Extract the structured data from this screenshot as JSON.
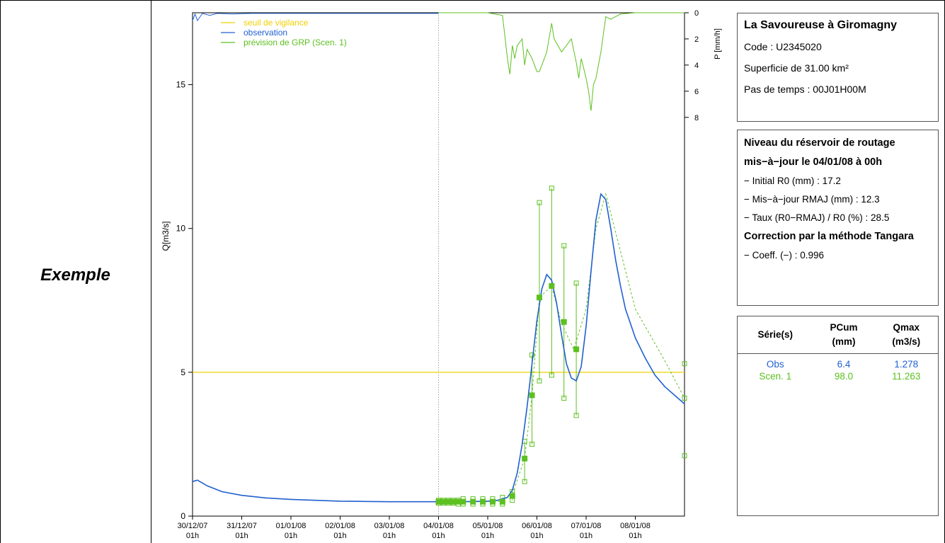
{
  "row_label": "Exemple",
  "station": {
    "title": "La Savoureuse à Giromagny",
    "code": "Code : U2345020",
    "area": "Superficie de 31.00 km²",
    "timestep": "Pas de temps : 00J01H00M"
  },
  "reservoir": {
    "heading1": "Niveau du réservoir de routage",
    "heading2": "mis−à−jour le 04/01/08 à 00h",
    "initial": "− Initial R0 (mm) :  17.2",
    "updated": "− Mis−à−jour RMAJ (mm) :  12.3",
    "rate": "− Taux (R0−RMAJ) / R0 (%) : 28.5",
    "correction_heading": "Correction par la méthode Tangara",
    "coeff": "− Coeff. (−) : 0.996"
  },
  "stats": {
    "headers": [
      "Série(s)",
      "PCum",
      "(mm)",
      "Qmax",
      "(m3/s)"
    ],
    "rows": [
      {
        "serie": "Obs",
        "pcum": "6.4",
        "qmax": "1.278",
        "color": "#2060d0"
      },
      {
        "serie": "Scen. 1",
        "pcum": "98.0",
        "qmax": "11.263",
        "color": "#5cc020"
      }
    ]
  },
  "chart_data": {
    "type": "line",
    "ylabel": "Q[m3/s]",
    "y2label": "P [mm/h]",
    "ylim": [
      0,
      17.5
    ],
    "yticks": [
      "0",
      "5",
      "10",
      "15"
    ],
    "y2lim": [
      0,
      8.5
    ],
    "y2ticks": [
      "0",
      "2",
      "4",
      "6",
      "8"
    ],
    "xlim": [
      0,
      10
    ],
    "xticks": [
      {
        "date": "30/12/07",
        "hour": "01h",
        "x": 0
      },
      {
        "date": "31/12/07",
        "hour": "01h",
        "x": 1
      },
      {
        "date": "01/01/08",
        "hour": "01h",
        "x": 2
      },
      {
        "date": "02/01/08",
        "hour": "01h",
        "x": 3
      },
      {
        "date": "03/01/08",
        "hour": "01h",
        "x": 4
      },
      {
        "date": "04/01/08",
        "hour": "01h",
        "x": 5
      },
      {
        "date": "05/01/08",
        "hour": "01h",
        "x": 6
      },
      {
        "date": "06/01/08",
        "hour": "01h",
        "x": 7
      },
      {
        "date": "07/01/08",
        "hour": "01h",
        "x": 8
      },
      {
        "date": "08/01/08",
        "hour": "01h",
        "x": 9
      }
    ],
    "forecast_start_x": 5,
    "legend": [
      {
        "label": "seuil de vigilance",
        "color": "#f0d000"
      },
      {
        "label": "observation",
        "color": "#2060d0"
      },
      {
        "label": "prévision de GRP (Scen. 1)",
        "color": "#5cc020"
      }
    ],
    "threshold": 5,
    "observation": {
      "name": "observation",
      "x": [
        0,
        0.1,
        0.3,
        0.6,
        1,
        1.5,
        2,
        2.5,
        3,
        3.5,
        4,
        4.5,
        5,
        5.5,
        6,
        6.2,
        6.4,
        6.5,
        6.6,
        6.7,
        6.8,
        6.9,
        7,
        7.1,
        7.2,
        7.3,
        7.4,
        7.5,
        7.6,
        7.7,
        7.8,
        7.9,
        8,
        8.1,
        8.2,
        8.3,
        8.4,
        8.5,
        8.6,
        8.7,
        8.8,
        9,
        9.2,
        9.4,
        9.6,
        9.8,
        10
      ],
      "y": [
        1.2,
        1.25,
        1.05,
        0.85,
        0.72,
        0.63,
        0.58,
        0.55,
        0.52,
        0.51,
        0.5,
        0.5,
        0.5,
        0.5,
        0.52,
        0.55,
        0.65,
        0.9,
        1.5,
        2.5,
        3.8,
        5.3,
        6.8,
        7.9,
        8.4,
        8.2,
        7.4,
        6.3,
        5.3,
        4.8,
        4.7,
        5.2,
        6.6,
        8.5,
        10.3,
        11.2,
        11.0,
        10.0,
        8.9,
        8.0,
        7.2,
        6.2,
        5.5,
        4.9,
        4.5,
        4.2,
        3.9
      ]
    },
    "forecast_median": {
      "x": [
        5,
        5.1,
        5.2,
        5.3,
        5.4,
        5.5,
        5.7,
        5.9,
        6,
        6.2,
        6.3,
        6.5,
        6.75,
        6.9,
        7.05,
        7.3,
        7.5,
        7.75,
        8,
        8.2,
        8.4,
        9,
        9.6,
        10
      ],
      "y": [
        0.5,
        0.5,
        0.5,
        0.5,
        0.5,
        0.5,
        0.5,
        0.5,
        0.5,
        0.5,
        0.55,
        0.75,
        2.0,
        4.2,
        7.6,
        8.0,
        6.7,
        5.8,
        7.2,
        10.0,
        11.2,
        7.2,
        5.4,
        4.1
      ]
    },
    "forecast_points": {
      "x": [
        5,
        5.1,
        5.2,
        5.3,
        5.4,
        5.5,
        5.7,
        5.9,
        6.1,
        6.3,
        6.5,
        6.75,
        6.9,
        7.05,
        7.3,
        7.55,
        7.8
      ],
      "y": [
        0.5,
        0.5,
        0.5,
        0.5,
        0.5,
        0.5,
        0.5,
        0.5,
        0.5,
        0.5,
        0.7,
        2.0,
        4.2,
        7.6,
        8.0,
        6.75,
        5.8
      ],
      "low": [
        0.45,
        0.45,
        0.45,
        0.45,
        0.42,
        0.42,
        0.42,
        0.42,
        0.42,
        0.42,
        0.55,
        1.2,
        2.5,
        4.7,
        4.9,
        4.1,
        3.5
      ],
      "high": [
        0.55,
        0.55,
        0.55,
        0.55,
        0.55,
        0.6,
        0.6,
        0.6,
        0.6,
        0.65,
        0.85,
        2.6,
        5.6,
        10.9,
        11.4,
        9.4,
        8.1
      ]
    },
    "forecast_end_markers": {
      "x": [
        10,
        10,
        10
      ],
      "y": [
        5.3,
        4.1,
        2.1
      ]
    },
    "rain_observation": {
      "x": [
        0,
        0.05,
        0.1,
        0.2,
        0.35,
        0.5,
        0.8,
        1.2,
        1.5,
        2,
        2.5,
        3,
        3.5,
        4,
        4.5,
        5
      ],
      "y": [
        0.6,
        0.1,
        0.6,
        0.05,
        0.2,
        0.05,
        0.1,
        0.05,
        0.05,
        0.05,
        0.05,
        0.05,
        0.05,
        0.05,
        0.05,
        0.05
      ]
    },
    "rain_forecast": {
      "x": [
        5,
        5.5,
        6,
        6.3,
        6.4,
        6.45,
        6.5,
        6.55,
        6.6,
        6.7,
        6.75,
        6.8,
        6.9,
        7,
        7.05,
        7.1,
        7.2,
        7.3,
        7.35,
        7.5,
        7.6,
        7.7,
        7.8,
        7.85,
        7.9,
        8,
        8.05,
        8.1,
        8.15,
        8.2,
        8.3,
        8.4,
        8.5,
        8.7,
        9,
        9.5,
        10
      ],
      "y": [
        0,
        0,
        0,
        0.2,
        3.5,
        4.7,
        2.5,
        3.5,
        2.5,
        2.0,
        4.0,
        2.8,
        3.5,
        4.5,
        4.5,
        4.0,
        3.0,
        0.8,
        2.0,
        3.0,
        2.5,
        2.0,
        3.8,
        5.0,
        3.5,
        5.0,
        6.0,
        7.5,
        5.5,
        5.0,
        3.0,
        0.3,
        0.5,
        0.1,
        0,
        0,
        0
      ]
    }
  }
}
